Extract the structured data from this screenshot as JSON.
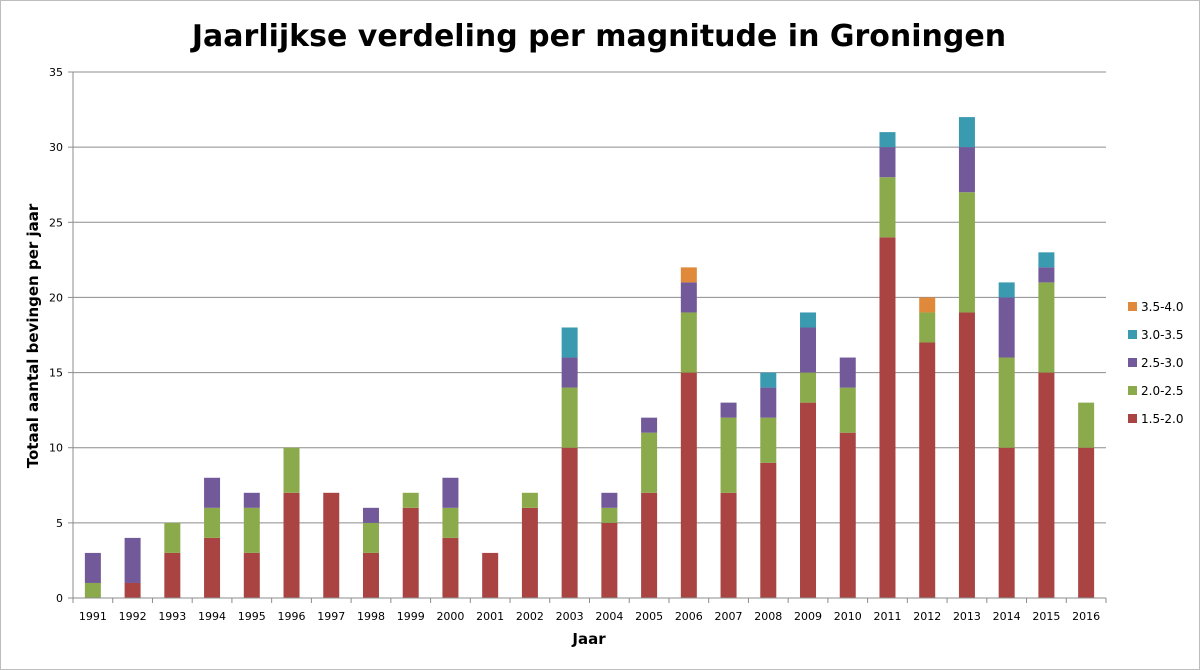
{
  "chart_data": {
    "type": "bar",
    "stacked": true,
    "title": "Jaarlijkse verdeling per magnitude in Groningen",
    "xlabel": "Jaar",
    "ylabel": "Totaal aantal bevingen per jaar",
    "ylim": [
      0,
      35
    ],
    "yticks": [
      0,
      5,
      10,
      15,
      20,
      25,
      30,
      35
    ],
    "grid": true,
    "legend_position": "right",
    "categories": [
      "1991",
      "1992",
      "1993",
      "1994",
      "1995",
      "1996",
      "1997",
      "1998",
      "1999",
      "2000",
      "2001",
      "2002",
      "2003",
      "2004",
      "2005",
      "2006",
      "2007",
      "2008",
      "2009",
      "2010",
      "2011",
      "2012",
      "2013",
      "2014",
      "2015",
      "2016"
    ],
    "series": [
      {
        "name": "1.5-2.0",
        "color": "#A94442",
        "values": [
          0,
          1,
          3,
          4,
          3,
          7,
          7,
          3,
          6,
          4,
          3,
          6,
          10,
          5,
          7,
          15,
          7,
          9,
          13,
          11,
          24,
          17,
          19,
          10,
          15,
          10
        ]
      },
      {
        "name": "2.0-2.5",
        "color": "#8BAA4B",
        "values": [
          1,
          0,
          2,
          2,
          3,
          3,
          0,
          2,
          1,
          2,
          0,
          1,
          4,
          1,
          4,
          4,
          5,
          3,
          2,
          3,
          4,
          2,
          8,
          6,
          6,
          3
        ]
      },
      {
        "name": "2.5-3.0",
        "color": "#72599A",
        "values": [
          2,
          3,
          0,
          2,
          1,
          0,
          0,
          1,
          0,
          2,
          0,
          0,
          2,
          1,
          1,
          2,
          1,
          2,
          3,
          2,
          2,
          0,
          3,
          4,
          1,
          0
        ]
      },
      {
        "name": "3.0-3.5",
        "color": "#3A9AB0",
        "values": [
          0,
          0,
          0,
          0,
          0,
          0,
          0,
          0,
          0,
          0,
          0,
          0,
          2,
          0,
          0,
          0,
          0,
          1,
          1,
          0,
          1,
          0,
          2,
          1,
          1,
          0
        ]
      },
      {
        "name": "3.5-4.0",
        "color": "#E0893A",
        "values": [
          0,
          0,
          0,
          0,
          0,
          0,
          0,
          0,
          0,
          0,
          0,
          0,
          0,
          0,
          0,
          1,
          0,
          0,
          0,
          0,
          0,
          1,
          0,
          0,
          0,
          0
        ]
      }
    ]
  }
}
